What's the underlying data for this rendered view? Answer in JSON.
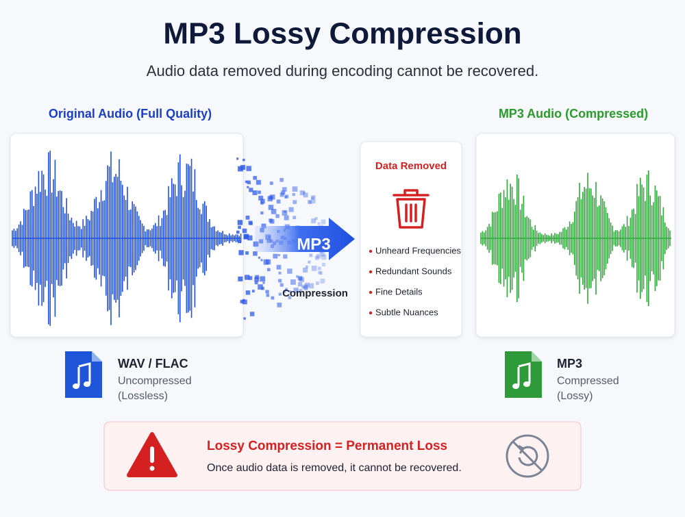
{
  "header": {
    "title": "MP3 Lossy Compression",
    "subtitle": "Audio data removed during encoding cannot be recovered."
  },
  "original": {
    "label": "Original Audio (Full Quality)",
    "format": "WAV / FLAC",
    "description": [
      "Uncompressed",
      "(Lossless)"
    ]
  },
  "arrow": {
    "label": "MP3",
    "caption": "Compression"
  },
  "removed": {
    "title": "Data Removed",
    "items": [
      "Unheard Frequencies",
      "Redundant Sounds",
      "Fine Details",
      "Subtle Nuances"
    ]
  },
  "compressed": {
    "label": "MP3 Audio (Compressed)",
    "format": "MP3",
    "description": [
      "Compressed",
      "(Lossy)"
    ]
  },
  "warning": {
    "title": "Lossy Compression = Permanent Loss",
    "message": "Once audio data is removed, it cannot be recovered."
  }
}
